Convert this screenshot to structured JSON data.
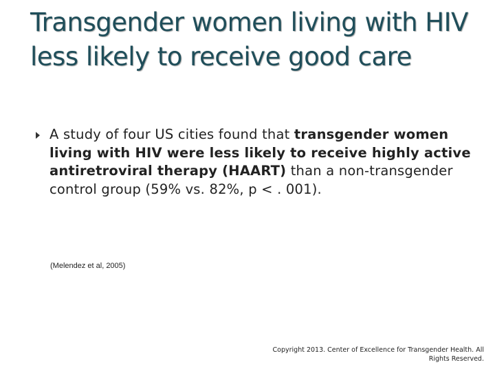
{
  "slide": {
    "title": "Transgender women living with HIV less likely to receive good care",
    "bullet": {
      "part1": "A study of four US cities found that ",
      "part2_bold": "transgender women living with HIV were less likely to receive highly active antiretroviral therapy (HAART)",
      "part3": " than a non-transgender control group (59% vs. 82%, p < . 001)."
    },
    "citation": "(Melendez et al, 2005)",
    "copyright": "Copyright 2013. Center of Excellence for Transgender Health. All Rights Reserved."
  },
  "colors": {
    "title": "#1f4e5a",
    "body_text": "#222222",
    "background": "#ffffff"
  },
  "icons": {
    "bullet": "triangle-right-icon"
  }
}
